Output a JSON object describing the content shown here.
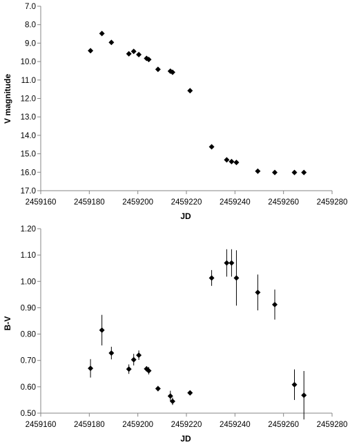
{
  "chart_data": [
    {
      "type": "scatter",
      "title": "",
      "xlabel": "JD",
      "ylabel": "V magnitude",
      "xlim": [
        2459160,
        2459280
      ],
      "ylim": [
        7.0,
        17.0
      ],
      "y_inverted": true,
      "grid": false,
      "marker": "diamond",
      "color": "#000000",
      "x_ticks": [
        "2459160",
        "2459180",
        "2459200",
        "2459220",
        "2459240",
        "2459260",
        "2459280"
      ],
      "y_ticks": [
        "7.0",
        "8.0",
        "9.0",
        "10.0",
        "11.0",
        "12.0",
        "13.0",
        "14.0",
        "15.0",
        "16.0",
        "17.0"
      ],
      "x_tick_values": [
        2459160,
        2459180,
        2459200,
        2459220,
        2459240,
        2459260,
        2459280
      ],
      "y_tick_values": [
        7,
        8,
        9,
        10,
        11,
        12,
        13,
        14,
        15,
        16,
        17
      ],
      "points": [
        {
          "x": 2459180.5,
          "y": 9.41
        },
        {
          "x": 2459185.2,
          "y": 8.48
        },
        {
          "x": 2459189.1,
          "y": 8.96
        },
        {
          "x": 2459196.3,
          "y": 9.58
        },
        {
          "x": 2459198.3,
          "y": 9.45
        },
        {
          "x": 2459200.4,
          "y": 9.62
        },
        {
          "x": 2459203.6,
          "y": 9.83
        },
        {
          "x": 2459204.5,
          "y": 9.89
        },
        {
          "x": 2459208.3,
          "y": 10.42
        },
        {
          "x": 2459213.4,
          "y": 10.52
        },
        {
          "x": 2459214.3,
          "y": 10.58
        },
        {
          "x": 2459221.5,
          "y": 11.58
        },
        {
          "x": 2459230.4,
          "y": 14.62
        },
        {
          "x": 2459236.6,
          "y": 15.33
        },
        {
          "x": 2459238.6,
          "y": 15.42
        },
        {
          "x": 2459240.6,
          "y": 15.47
        },
        {
          "x": 2459249.4,
          "y": 15.94
        },
        {
          "x": 2459256.4,
          "y": 16.01
        },
        {
          "x": 2459264.5,
          "y": 16.01
        },
        {
          "x": 2459268.4,
          "y": 16.01
        }
      ]
    },
    {
      "type": "scatter",
      "title": "",
      "xlabel": "JD",
      "ylabel": "B-V",
      "xlim": [
        2459160,
        2459280
      ],
      "ylim": [
        0.5,
        1.2
      ],
      "grid": false,
      "marker": "diamond",
      "error_bars": "vertical",
      "color": "#000000",
      "x_ticks": [
        "2459160",
        "2459180",
        "2459200",
        "2459220",
        "2459240",
        "2459260",
        "2459280"
      ],
      "y_ticks": [
        "0.50",
        "0.60",
        "0.70",
        "0.80",
        "0.90",
        "1.00",
        "1.10",
        "1.20"
      ],
      "x_tick_values": [
        2459160,
        2459180,
        2459200,
        2459220,
        2459240,
        2459260,
        2459280
      ],
      "y_tick_values": [
        0.5,
        0.6,
        0.7,
        0.8,
        0.9,
        1.0,
        1.1,
        1.2
      ],
      "points": [
        {
          "x": 2459180.5,
          "y": 0.67,
          "err": 0.035
        },
        {
          "x": 2459185.2,
          "y": 0.815,
          "err": 0.058
        },
        {
          "x": 2459189.1,
          "y": 0.728,
          "err": 0.024
        },
        {
          "x": 2459196.3,
          "y": 0.667,
          "err": 0.018
        },
        {
          "x": 2459198.3,
          "y": 0.703,
          "err": 0.022
        },
        {
          "x": 2459200.4,
          "y": 0.72,
          "err": 0.018
        },
        {
          "x": 2459203.6,
          "y": 0.668,
          "err": 0.01
        },
        {
          "x": 2459204.5,
          "y": 0.661,
          "err": 0.014
        },
        {
          "x": 2459208.3,
          "y": 0.593,
          "err": 0.01
        },
        {
          "x": 2459213.4,
          "y": 0.565,
          "err": 0.02
        },
        {
          "x": 2459214.3,
          "y": 0.545,
          "err": 0.014
        },
        {
          "x": 2459221.5,
          "y": 0.577,
          "err": 0.005
        },
        {
          "x": 2459230.4,
          "y": 1.013,
          "err": 0.03
        },
        {
          "x": 2459236.6,
          "y": 1.07,
          "err": 0.052
        },
        {
          "x": 2459238.6,
          "y": 1.07,
          "err": 0.052
        },
        {
          "x": 2459240.6,
          "y": 1.013,
          "err": 0.105
        },
        {
          "x": 2459249.4,
          "y": 0.958,
          "err": 0.068
        },
        {
          "x": 2459256.4,
          "y": 0.912,
          "err": 0.057
        },
        {
          "x": 2459264.5,
          "y": 0.608,
          "err": 0.058
        },
        {
          "x": 2459268.4,
          "y": 0.568,
          "err": 0.092
        }
      ]
    }
  ]
}
